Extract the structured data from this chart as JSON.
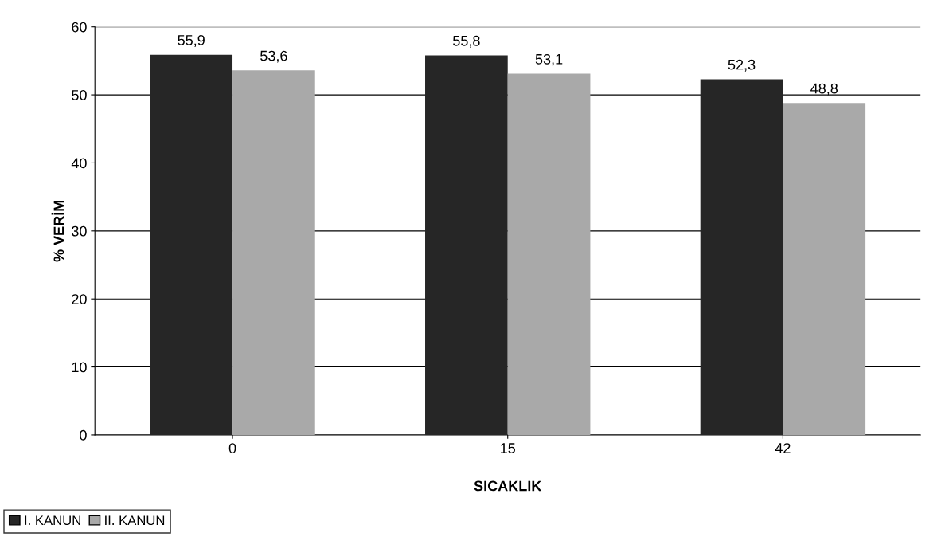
{
  "chart_data": {
    "type": "bar",
    "xlabel": "SICAKLIK",
    "ylabel": "% VERİM",
    "categories": [
      "0",
      "15",
      "42"
    ],
    "series": [
      {
        "name": "I. KANUN",
        "color": "#262626",
        "values": [
          55.9,
          55.8,
          52.3
        ],
        "value_labels": [
          "55,9",
          "55,8",
          "52,3"
        ]
      },
      {
        "name": "II. KANUN",
        "color": "#a9a9a9",
        "values": [
          53.6,
          53.1,
          48.8
        ],
        "value_labels": [
          "53,6",
          "53,1",
          "48,8"
        ]
      }
    ],
    "ylim": [
      0,
      60
    ],
    "yticks": [
      0,
      10,
      20,
      30,
      40,
      50,
      60
    ],
    "grid": "y",
    "legend": "bottom left"
  }
}
